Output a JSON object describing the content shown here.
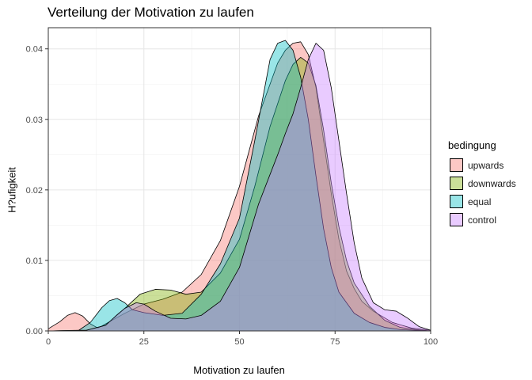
{
  "chart_data": {
    "type": "area",
    "title": "Verteilung der Motivation zu laufen",
    "xlabel": "Motivation zu laufen",
    "ylabel": "H?ufigkeit",
    "xlim": [
      0,
      100
    ],
    "ylim": [
      0,
      0.043
    ],
    "x_ticks": [
      0,
      25,
      50,
      75,
      100
    ],
    "y_ticks": [
      0.0,
      0.01,
      0.02,
      0.03,
      0.04
    ],
    "y_tick_labels": [
      "0.00",
      "0.01",
      "0.02",
      "0.03",
      "0.04"
    ],
    "grid": true,
    "legend": {
      "title": "bedingung",
      "position": "right"
    },
    "series": [
      {
        "name": "upwards",
        "color": "#F8766D",
        "x": [
          0,
          3,
          5,
          7,
          9,
          11,
          13,
          15,
          20,
          25,
          30,
          35,
          40,
          45,
          50,
          55,
          60,
          62,
          64,
          66,
          68,
          70,
          72,
          74,
          76,
          78,
          80,
          82,
          85,
          90,
          95,
          100
        ],
        "y": [
          0.0003,
          0.0013,
          0.0022,
          0.0026,
          0.0021,
          0.001,
          0.0004,
          0.001,
          0.0025,
          0.0038,
          0.0045,
          0.0055,
          0.008,
          0.0128,
          0.0205,
          0.0305,
          0.038,
          0.0398,
          0.0408,
          0.041,
          0.0392,
          0.0345,
          0.027,
          0.0195,
          0.013,
          0.0085,
          0.006,
          0.0042,
          0.0028,
          0.0012,
          0.0004,
          0.0001
        ]
      },
      {
        "name": "downwards",
        "color": "#7CAE00",
        "x": [
          0,
          10,
          15,
          20,
          24,
          28,
          32,
          36,
          40,
          45,
          50,
          54,
          58,
          62,
          64,
          66,
          68,
          70,
          72,
          74,
          76,
          78,
          80,
          84,
          88,
          92,
          96,
          100
        ],
        "y": [
          0,
          0.0001,
          0.0008,
          0.0032,
          0.0052,
          0.0059,
          0.0058,
          0.0052,
          0.0055,
          0.0082,
          0.013,
          0.0205,
          0.029,
          0.0355,
          0.0378,
          0.0388,
          0.038,
          0.0348,
          0.0285,
          0.021,
          0.0148,
          0.01,
          0.0068,
          0.0035,
          0.0015,
          0.0005,
          0.0002,
          0
        ]
      },
      {
        "name": "equal",
        "color": "#00BFC4",
        "x": [
          0,
          8,
          11,
          14,
          16,
          18,
          20,
          22,
          25,
          30,
          35,
          40,
          45,
          50,
          54,
          58,
          60,
          62,
          64,
          66,
          68,
          70,
          72,
          74,
          76,
          80,
          84,
          88,
          92,
          96,
          100
        ],
        "y": [
          0,
          0.0001,
          0.0012,
          0.0033,
          0.0043,
          0.0046,
          0.004,
          0.003,
          0.0026,
          0.0022,
          0.0025,
          0.0052,
          0.0095,
          0.016,
          0.027,
          0.0385,
          0.0408,
          0.0412,
          0.0398,
          0.036,
          0.03,
          0.022,
          0.0145,
          0.009,
          0.0055,
          0.0025,
          0.0012,
          0.0005,
          0.0002,
          0.0001,
          0
        ]
      },
      {
        "name": "control",
        "color": "#C77CFF",
        "x": [
          0,
          10,
          15,
          18,
          20,
          23,
          25,
          28,
          32,
          36,
          40,
          45,
          50,
          55,
          60,
          62,
          64,
          66,
          68,
          70,
          72,
          74,
          76,
          78,
          80,
          82,
          85,
          88,
          91,
          94,
          97,
          100
        ],
        "y": [
          0,
          0.0001,
          0.0008,
          0.0023,
          0.0032,
          0.004,
          0.0038,
          0.0028,
          0.0018,
          0.0017,
          0.0022,
          0.0042,
          0.009,
          0.018,
          0.025,
          0.028,
          0.0308,
          0.0345,
          0.0385,
          0.0408,
          0.0398,
          0.0345,
          0.027,
          0.0195,
          0.0125,
          0.0075,
          0.004,
          0.003,
          0.0028,
          0.0018,
          0.0006,
          0.0001
        ]
      }
    ]
  }
}
